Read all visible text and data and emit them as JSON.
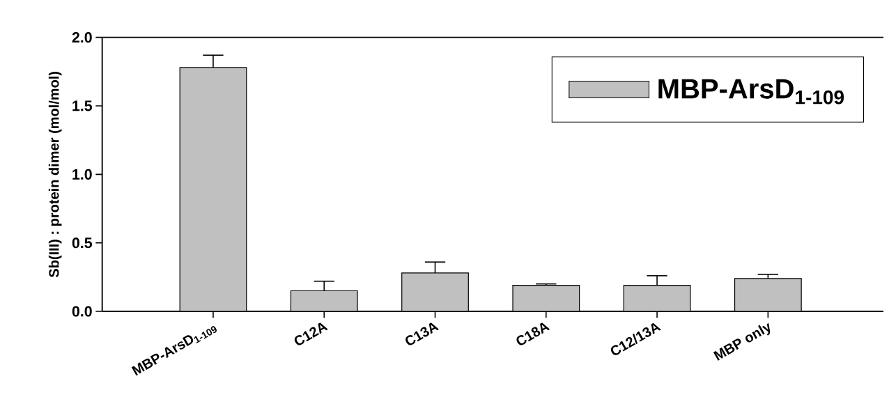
{
  "chart_data": {
    "type": "bar",
    "ylabel": "Sb(III) : protein dimer (mol/mol)",
    "categories": [
      "MBP-ArsD$_{1-109}$",
      "C12A",
      "C13A",
      "C18A",
      "C12/13A",
      "MBP only"
    ],
    "series": [
      {
        "name": "MBP-ArsD$_{1-109}$",
        "color": "#c0c0c0",
        "values": [
          1.78,
          0.15,
          0.28,
          0.19,
          0.19,
          0.24
        ],
        "errors": [
          0.09,
          0.07,
          0.08,
          0.01,
          0.07,
          0.03
        ]
      }
    ],
    "ylim": [
      0,
      2.0
    ],
    "yticks": [
      {
        "value": 0,
        "label": "0.0"
      },
      0.5,
      {
        "value": 1,
        "label": "1.0"
      },
      1.5,
      {
        "value": 2,
        "label": "2.0"
      }
    ],
    "legend": "top right",
    "grid": false
  }
}
